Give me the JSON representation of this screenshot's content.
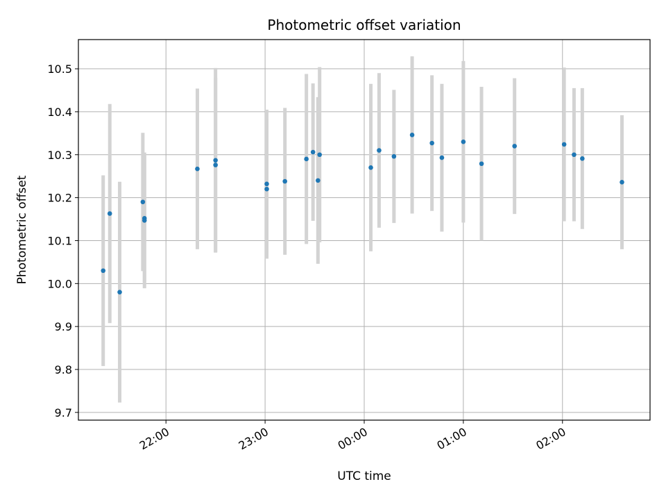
{
  "chart_data": {
    "type": "scatter",
    "title": "Photometric offset variation",
    "xlabel": "UTC time",
    "ylabel": "Photometric offset",
    "x_ticks": [
      "22:00",
      "23:00",
      "00:00",
      "01:00",
      "02:00"
    ],
    "y_ticks": [
      "9.7",
      "9.8",
      "9.9",
      "10.0",
      "10.1",
      "10.2",
      "10.3",
      "10.4",
      "10.5"
    ],
    "xlim": [
      "21:07",
      "02:53"
    ],
    "ylim": [
      9.682,
      10.568
    ],
    "grid": true,
    "colors": {
      "marker": "#1f77b4",
      "errorbar": "#d3d3d3",
      "grid": "#b0b0b0"
    },
    "points": [
      {
        "x": "21:22",
        "y": 10.03,
        "err": 0.222
      },
      {
        "x": "21:26",
        "y": 10.163,
        "err": 0.255
      },
      {
        "x": "21:32",
        "y": 9.98,
        "err": 0.257
      },
      {
        "x": "21:46",
        "y": 10.19,
        "err": 0.161
      },
      {
        "x": "21:47",
        "y": 10.152,
        "err": 0.148
      },
      {
        "x": "21:47",
        "y": 10.147,
        "err": 0.158
      },
      {
        "x": "22:19",
        "y": 10.267,
        "err": 0.187
      },
      {
        "x": "22:30",
        "y": 10.287,
        "err": 0.215
      },
      {
        "x": "22:30",
        "y": 10.276,
        "err": 0.203
      },
      {
        "x": "23:01",
        "y": 10.22,
        "err": 0.162
      },
      {
        "x": "23:01",
        "y": 10.232,
        "err": 0.173
      },
      {
        "x": "23:12",
        "y": 10.238,
        "err": 0.171
      },
      {
        "x": "23:25",
        "y": 10.29,
        "err": 0.198
      },
      {
        "x": "23:29",
        "y": 10.306,
        "err": 0.16
      },
      {
        "x": "23:32",
        "y": 10.24,
        "err": 0.194
      },
      {
        "x": "23:33",
        "y": 10.3,
        "err": 0.204
      },
      {
        "x": "00:04",
        "y": 10.27,
        "err": 0.195
      },
      {
        "x": "00:09",
        "y": 10.31,
        "err": 0.18
      },
      {
        "x": "00:18",
        "y": 10.296,
        "err": 0.155
      },
      {
        "x": "00:29",
        "y": 10.346,
        "err": 0.183
      },
      {
        "x": "00:41",
        "y": 10.327,
        "err": 0.158
      },
      {
        "x": "00:47",
        "y": 10.293,
        "err": 0.172
      },
      {
        "x": "01:00",
        "y": 10.33,
        "err": 0.188
      },
      {
        "x": "01:11",
        "y": 10.279,
        "err": 0.179
      },
      {
        "x": "01:31",
        "y": 10.32,
        "err": 0.158
      },
      {
        "x": "02:01",
        "y": 10.324,
        "err": 0.179
      },
      {
        "x": "02:07",
        "y": 10.3,
        "err": 0.155
      },
      {
        "x": "02:12",
        "y": 10.291,
        "err": 0.164
      },
      {
        "x": "02:36",
        "y": 10.236,
        "err": 0.156
      }
    ]
  }
}
